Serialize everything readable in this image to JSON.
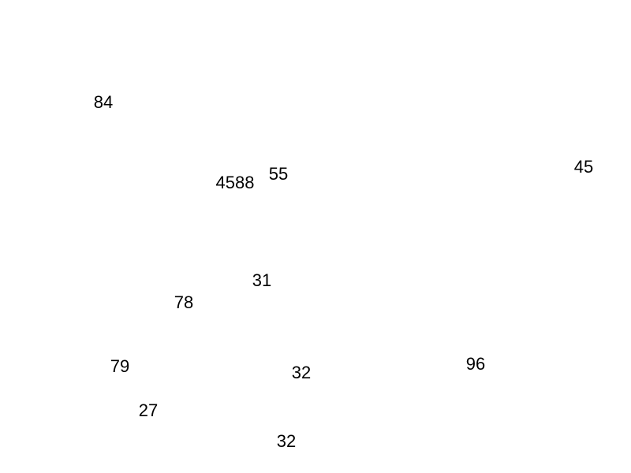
{
  "numbers": [
    "84",
    "4588",
    "55",
    "45",
    "31",
    "78",
    "79",
    "32",
    "96",
    "27",
    "32"
  ],
  "colors": {
    "background": "#ffffff",
    "text": "#000000"
  }
}
